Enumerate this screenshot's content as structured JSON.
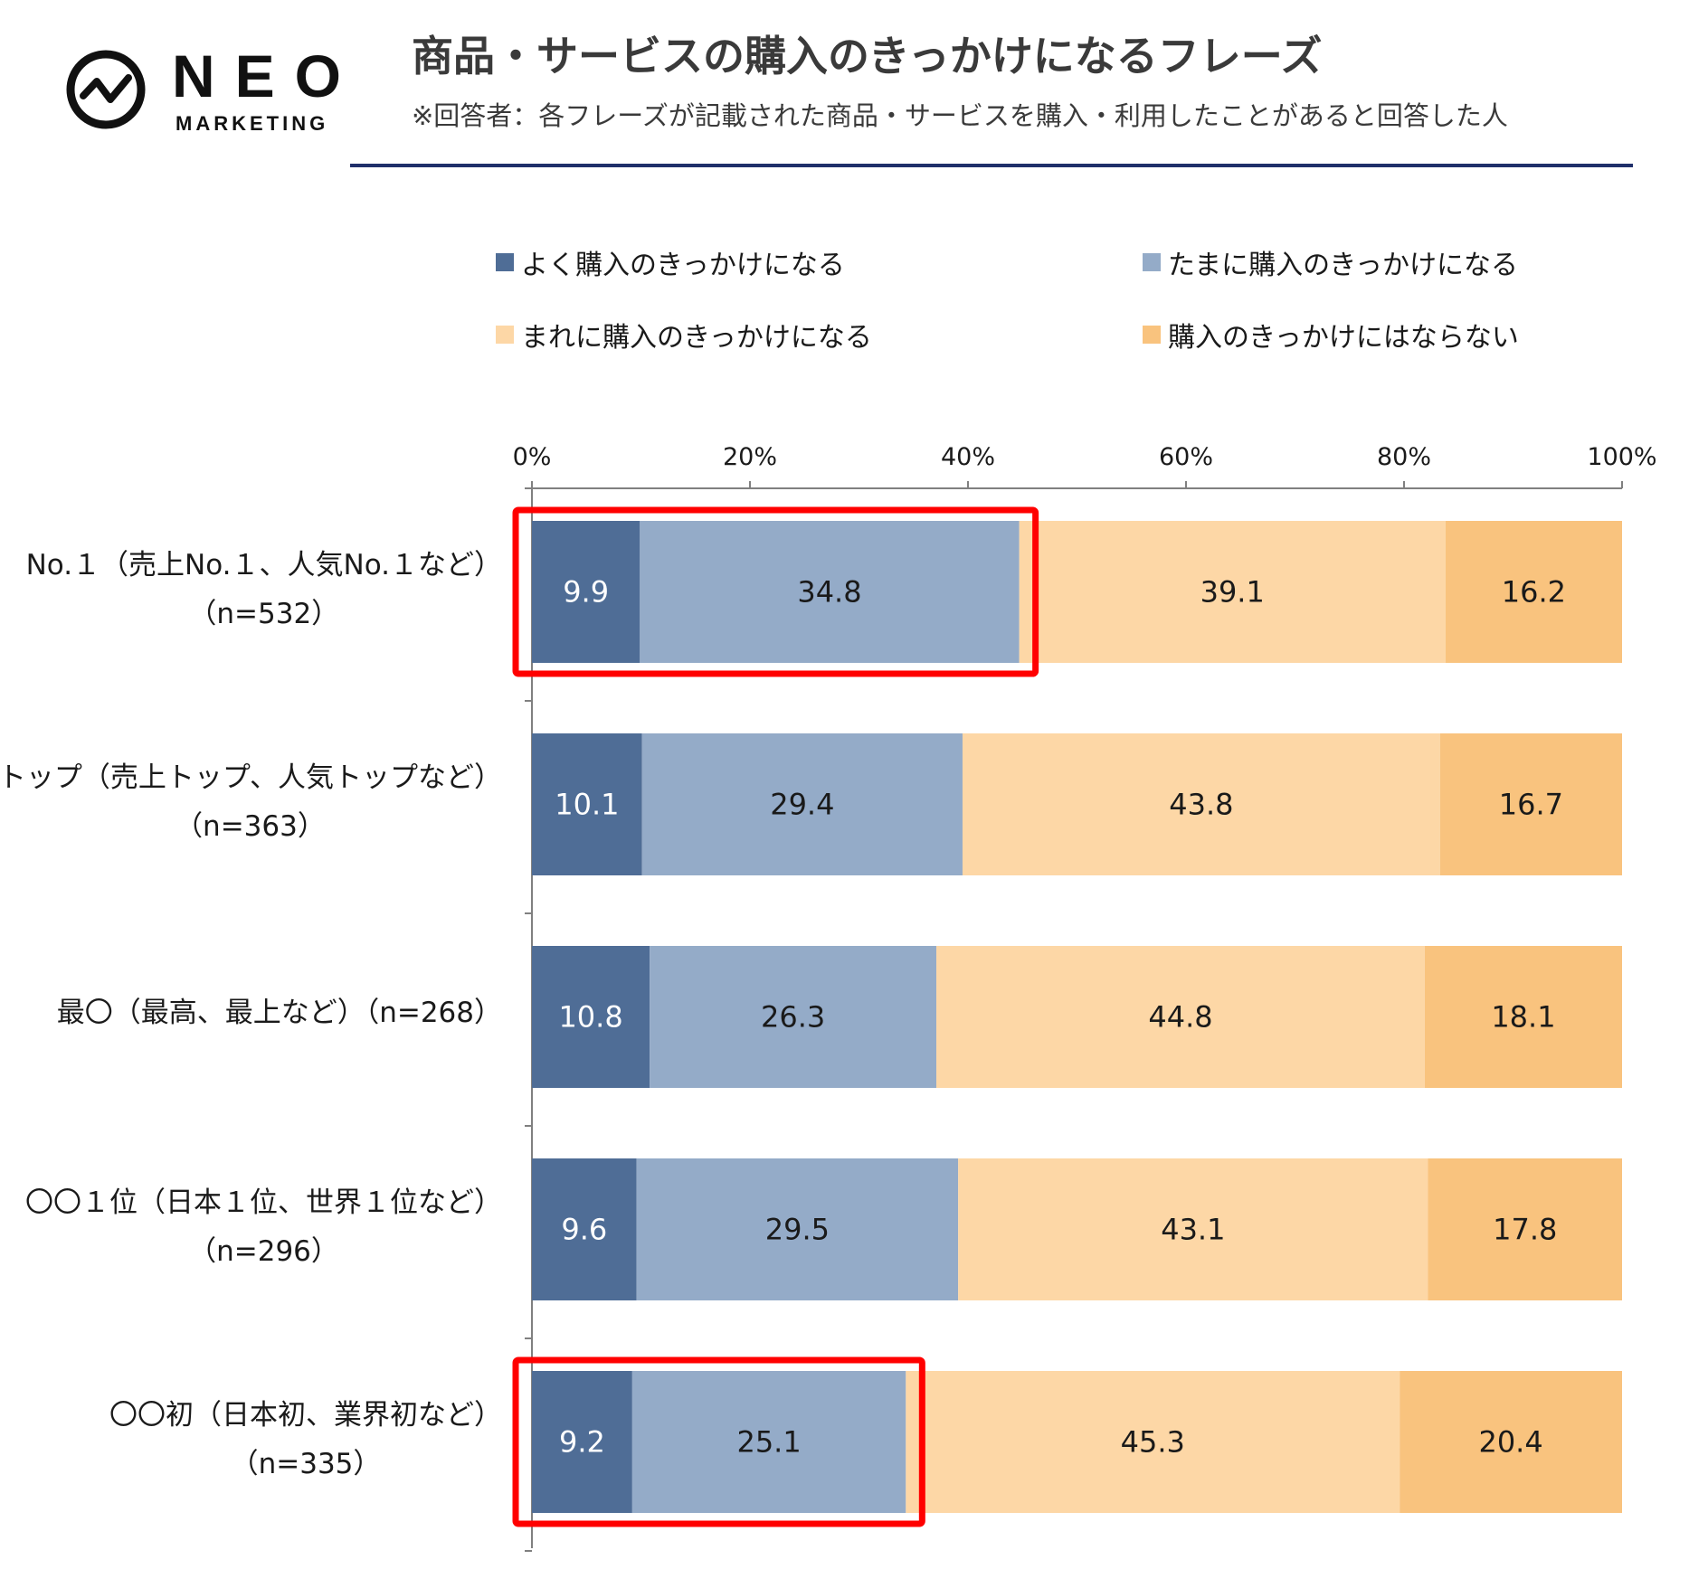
{
  "brand": {
    "name": "NEO",
    "sub": "MARKETING"
  },
  "header": {
    "title": "商品・サービスの購入のきっかけになるフレーズ",
    "subtitle": "※回答者：各フレーズが記載された商品・サービスを購入・利用したことがあると回答した人"
  },
  "colors": {
    "often": "#4f6d96",
    "sometimes": "#94abc8",
    "rarely": "#fdd7a6",
    "never": "#f9c37e",
    "highlight": "#ff0000",
    "rule": "#1f2f6a"
  },
  "chart_data": {
    "type": "bar",
    "orientation": "horizontal",
    "stacked": true,
    "title": "商品・サービスの購入のきっかけになるフレーズ",
    "xlim": [
      0,
      100
    ],
    "x_ticks": [
      "0%",
      "20%",
      "40%",
      "60%",
      "80%",
      "100%"
    ],
    "categories": [
      {
        "label": "No.１（売上No.１、人気No.１など）",
        "n": "（n=532）"
      },
      {
        "label": "トップ（売上トップ、人気トップなど）",
        "n": "（n=363）"
      },
      {
        "label": "最〇（最高、最上など）（n=268）",
        "n": ""
      },
      {
        "label": "〇〇１位（日本１位、世界１位など）",
        "n": "（n=296）"
      },
      {
        "label": "〇〇初（日本初、業界初など）",
        "n": "（n=335）"
      }
    ],
    "series": [
      {
        "name": "よく購入のきっかけになる",
        "key": "often",
        "values": [
          9.9,
          10.1,
          10.8,
          9.6,
          9.2
        ]
      },
      {
        "name": "たまに購入のきっかけになる",
        "key": "sometimes",
        "values": [
          34.8,
          29.4,
          26.3,
          29.5,
          25.1
        ]
      },
      {
        "name": "まれに購入のきっかけになる",
        "key": "rarely",
        "values": [
          39.1,
          43.8,
          44.8,
          43.1,
          45.3
        ]
      },
      {
        "name": "購入のきっかけにはならない",
        "key": "never",
        "values": [
          16.2,
          16.7,
          18.1,
          17.8,
          20.4
        ]
      }
    ],
    "data_labels": [
      [
        "9.9",
        "34.8",
        "39.1",
        "16.2"
      ],
      [
        "10.1",
        "29.4",
        "43.8",
        "16.7"
      ],
      [
        "10.8",
        "26.3",
        "44.8",
        "18.1"
      ],
      [
        "9.6",
        "29.5",
        "43.1",
        "17.8"
      ],
      [
        "9.2",
        "25.1",
        "45.3",
        "20.4"
      ]
    ],
    "highlights": [
      {
        "category_index": 0,
        "series_span": [
          0,
          1
        ]
      },
      {
        "category_index": 4,
        "series_span": [
          0,
          1
        ]
      }
    ],
    "legend_position": "top"
  }
}
